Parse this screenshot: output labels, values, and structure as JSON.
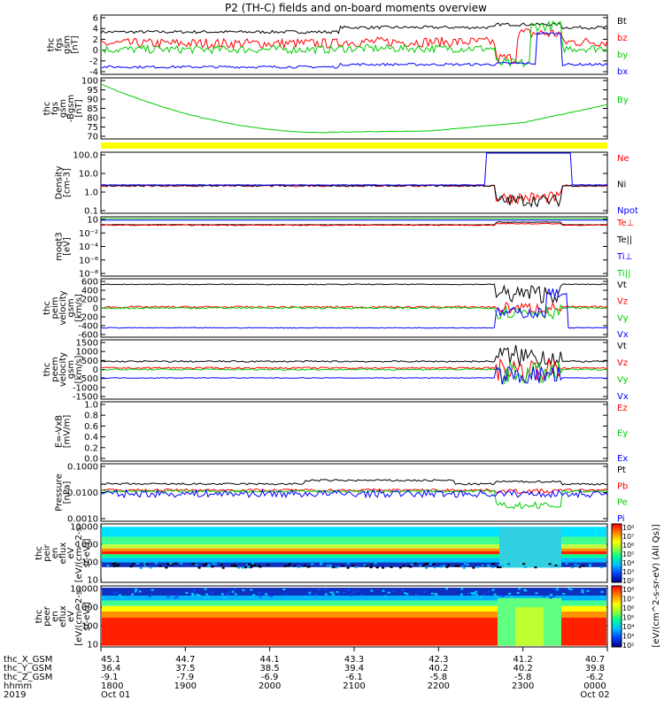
{
  "title": "P2 (TH-C) fields and on-board moments overview",
  "colors": {
    "black": "#000000",
    "red": "#ff0000",
    "green": "#00cc00",
    "blue": "#0000ff",
    "yellow": "#ffff00"
  },
  "chart_data": [
    {
      "type": "line",
      "ylabel": [
        "thc",
        "fgs",
        "gsm",
        "[nT]"
      ],
      "yticks": [
        "6",
        "4",
        "2",
        "0",
        "-2",
        "-4"
      ],
      "ylim": [
        -5,
        6.5
      ],
      "legend": [
        {
          "label": "Bt",
          "color": "#000000"
        },
        {
          "label": "bz",
          "color": "#ff0000"
        },
        {
          "label": "by",
          "color": "#00cc00"
        },
        {
          "label": "bx",
          "color": "#0000ff"
        }
      ]
    },
    {
      "type": "line",
      "ylabel": [
        "thc",
        "fgs",
        "gsm",
        "-Bgsm",
        "[nT]"
      ],
      "yticks": [
        "100",
        "95",
        "90",
        "85",
        "80",
        "75",
        "70"
      ],
      "ylim": [
        67,
        100
      ],
      "legend": [
        {
          "label": "By",
          "color": "#00cc00"
        }
      ]
    },
    {
      "type": "line",
      "ylabel": [
        "Density",
        "[cm-3]"
      ],
      "yticks": [
        "100.0",
        "10.0",
        "1.0",
        "0.1"
      ],
      "log": true,
      "legend": [
        {
          "label": "Ne",
          "color": "#ff0000"
        },
        {
          "label": "Ni",
          "color": "#000000"
        },
        {
          "label": "Npot",
          "color": "#0000ff"
        }
      ]
    },
    {
      "type": "line",
      "ylabel": [
        "moqt3",
        "[eV]"
      ],
      "yticks": [
        "10",
        "10⁻²",
        "10⁻⁴",
        "10⁻⁶",
        "10⁻⁸"
      ],
      "log": true,
      "legend": [
        {
          "label": "Te⊥",
          "color": "#ff0000"
        },
        {
          "label": "Te||",
          "color": "#000000"
        },
        {
          "label": "Ti⊥",
          "color": "#0000ff"
        },
        {
          "label": "Ti||",
          "color": "#00cc00"
        }
      ]
    },
    {
      "type": "line",
      "ylabel": [
        "thc",
        "peim",
        "velocity",
        "gsm",
        "[km/s]"
      ],
      "yticks": [
        "600",
        "400",
        "200",
        "0",
        "-200",
        "-400",
        "-600"
      ],
      "ylim": [
        -600,
        600
      ],
      "legend": [
        {
          "label": "Vt",
          "color": "#000000"
        },
        {
          "label": "Vz",
          "color": "#ff0000"
        },
        {
          "label": "Vy",
          "color": "#00cc00"
        },
        {
          "label": "Vx",
          "color": "#0000ff"
        }
      ]
    },
    {
      "type": "line",
      "ylabel": [
        "thc",
        "peem",
        "velocity",
        "gsm",
        "[km/s]"
      ],
      "yticks": [
        "1500",
        "1000",
        "500",
        "0",
        "-500",
        "-1000",
        "-1500"
      ],
      "ylim": [
        -1500,
        1500
      ],
      "legend": [
        {
          "label": "Vt",
          "color": "#000000"
        },
        {
          "label": "Vz",
          "color": "#ff0000"
        },
        {
          "label": "Vy",
          "color": "#00cc00"
        },
        {
          "label": "Vx",
          "color": "#0000ff"
        }
      ]
    },
    {
      "type": "line",
      "ylabel": [
        "E=-VxB",
        "[mV/m]"
      ],
      "yticks": [
        "1.0",
        "0.8",
        "0.6",
        "0.4",
        "0.2",
        "0.0"
      ],
      "ylim": [
        0,
        1
      ],
      "legend": [
        {
          "label": "Ez",
          "color": "#ff0000"
        },
        {
          "label": "Ey",
          "color": "#00cc00"
        },
        {
          "label": "Ex",
          "color": "#0000ff"
        }
      ]
    },
    {
      "type": "line",
      "ylabel": [
        "Pressure",
        "[nPa]"
      ],
      "yticks": [
        "0.1000",
        "0.0100",
        "0.0010"
      ],
      "log": true,
      "legend": [
        {
          "label": "Pt",
          "color": "#000000"
        },
        {
          "label": "Pb",
          "color": "#ff0000"
        },
        {
          "label": "Pe",
          "color": "#00cc00"
        },
        {
          "label": "Pi",
          "color": "#0000ff"
        }
      ]
    },
    {
      "type": "heatmap",
      "ylabel": [
        "thc",
        "peir",
        "en",
        "eflux",
        "eV",
        "[eV/(cm^2-s-",
        "sr-eV)]"
      ],
      "yticks": [
        "10000",
        "1000",
        "100",
        "10"
      ]
    },
    {
      "type": "heatmap",
      "ylabel": [
        "thc",
        "peer",
        "en",
        "eflux",
        "eV",
        "[eV/(cm^2-s-",
        "sr-eV)]"
      ],
      "yticks": [
        "10000",
        "1000",
        "100",
        "10"
      ]
    }
  ],
  "colorbar": {
    "ticks": [
      "10⁸",
      "10⁷",
      "10⁶",
      "10⁵",
      "10⁴",
      "10³",
      "10²"
    ],
    "label": "[eV/(cm^2-s-sr-eV) (All Qs)]"
  },
  "xaxis": {
    "row_labels": [
      "thc_X_GSM",
      "thc_Y_GSM",
      "thc_Z_GSM",
      "hhmm",
      "2019"
    ],
    "columns": [
      {
        "x": "45.1",
        "y": "36.4",
        "z": "-9.1",
        "hhmm": "1800",
        "date": "Oct 01"
      },
      {
        "x": "44.7",
        "y": "37.5",
        "z": "-7.9",
        "hhmm": "1900",
        "date": ""
      },
      {
        "x": "44.1",
        "y": "38.5",
        "z": "-6.9",
        "hhmm": "2000",
        "date": ""
      },
      {
        "x": "43.3",
        "y": "39.4",
        "z": "-6.1",
        "hhmm": "2100",
        "date": ""
      },
      {
        "x": "42.3",
        "y": "40.2",
        "z": "-5.8",
        "hhmm": "2200",
        "date": ""
      },
      {
        "x": "41.2",
        "y": "40.2",
        "z": "-5.8",
        "hhmm": "2300",
        "date": ""
      },
      {
        "x": "40.7",
        "y": "39.8",
        "z": "-6.2",
        "hhmm": "0000",
        "date": "Oct 02"
      }
    ]
  }
}
